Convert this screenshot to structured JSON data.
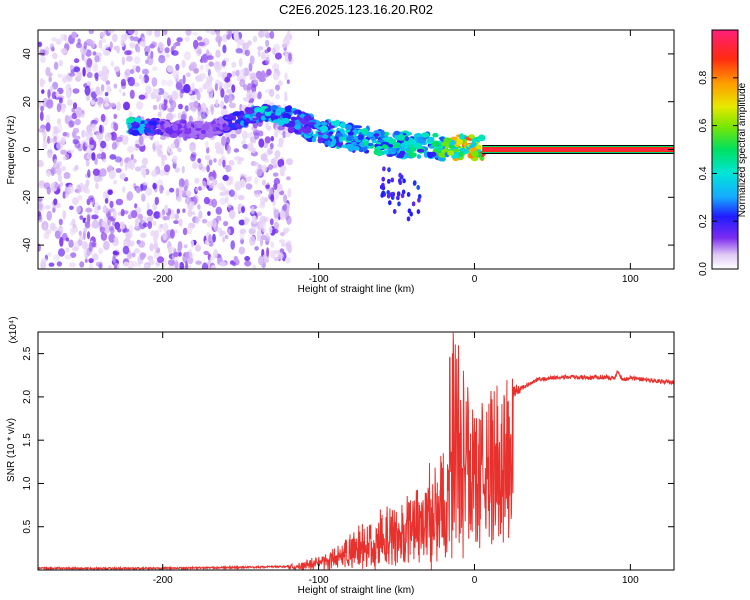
{
  "title": "C2E6.2025.123.16.20.R02",
  "chart_data": [
    {
      "type": "heatmap",
      "xlabel": "Height of straight line (km)",
      "ylabel": "Frequency (Hz)",
      "xlim": [
        -280,
        128
      ],
      "ylim": [
        -50,
        50
      ],
      "xticks": [
        -200,
        -100,
        0,
        100
      ],
      "yticks": [
        -40,
        -20,
        0,
        20,
        40
      ],
      "colorbar": {
        "label": "Normalized spectral amplitude",
        "range": [
          0,
          1
        ],
        "ticks": [
          "0.0",
          "0.2",
          "0.4",
          "0.6",
          "0.8"
        ]
      },
      "features": {
        "noise_region_x": [
          -280,
          -118
        ],
        "signal_line_x": [
          5,
          128
        ],
        "signal_line_freq": 0,
        "signal_line_amplitude": 0.95,
        "trend": [
          {
            "x": -222,
            "f": 10,
            "a": 0.45
          },
          {
            "x": -200,
            "f": 9,
            "a": 0.15
          },
          {
            "x": -170,
            "f": 8,
            "a": 0.12
          },
          {
            "x": -135,
            "f": 16,
            "a": 0.4
          },
          {
            "x": -115,
            "f": 12,
            "a": 0.3
          },
          {
            "x": -100,
            "f": 8,
            "a": 0.35
          },
          {
            "x": -85,
            "f": 6,
            "a": 0.4
          },
          {
            "x": -70,
            "f": 4,
            "a": 0.45
          },
          {
            "x": -55,
            "f": 2,
            "a": 0.45
          },
          {
            "x": -40,
            "f": 2,
            "a": 0.45
          },
          {
            "x": -25,
            "f": 1,
            "a": 0.5
          },
          {
            "x": -10,
            "f": 1,
            "a": 0.75
          },
          {
            "x": 0,
            "f": 1,
            "a": 0.8
          },
          {
            "x": 5,
            "f": 0,
            "a": 0.95
          }
        ]
      }
    },
    {
      "type": "line",
      "xlabel": "Height of straight line (km)",
      "ylabel": "SNR (10 * v/v)",
      "y_multiplier": "(x10⁴)",
      "xlim": [
        -280,
        128
      ],
      "ylim": [
        0,
        2.75
      ],
      "xticks": [
        -200,
        -100,
        0,
        100
      ],
      "yticks": [
        "0.5",
        "1.0",
        "1.5",
        "2.0",
        "2.5"
      ],
      "color": "#e8302c",
      "series": [
        {
          "x": [
            -280,
            -250,
            -200,
            -150,
            -120,
            -110,
            -100,
            -90,
            -80,
            -70,
            -60,
            -50,
            -40,
            -30,
            -20,
            -15,
            -12,
            -10,
            -5,
            0,
            5,
            10,
            15,
            20,
            25,
            30,
            35,
            40,
            50,
            60,
            70,
            80,
            90,
            92,
            95,
            100,
            110,
            120,
            128
          ],
          "y": [
            0.02,
            0.02,
            0.02,
            0.03,
            0.04,
            0.06,
            0.12,
            0.2,
            0.3,
            0.4,
            0.5,
            0.6,
            0.7,
            0.9,
            1.2,
            1.4,
            1.6,
            1.8,
            1.95,
            1.6,
            1.7,
            1.8,
            1.9,
            1.95,
            2.05,
            2.1,
            2.15,
            2.2,
            2.22,
            2.23,
            2.22,
            2.23,
            2.22,
            2.3,
            2.2,
            2.22,
            2.2,
            2.18,
            2.16
          ]
        }
      ]
    }
  ]
}
